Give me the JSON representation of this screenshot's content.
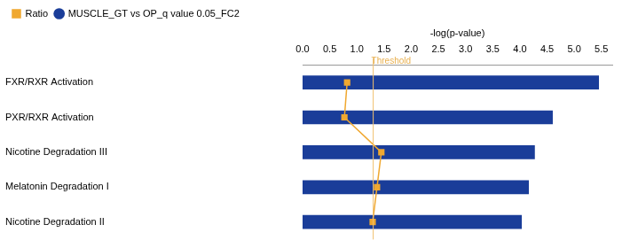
{
  "chart_data": {
    "type": "bar",
    "orientation": "horizontal",
    "xlabel": "-log(p-value)",
    "categories": [
      "FXR/RXR Activation",
      "PXR/RXR Activation",
      "Nicotine Degradation III",
      "Melatonin Degradation I",
      "Nicotine Degradation II"
    ],
    "series": [
      {
        "name": "MUSCLE_GT vs OP_q value 0.05_FC2",
        "type": "bar",
        "color": "#1a3d99",
        "values": [
          5.45,
          4.6,
          4.27,
          4.16,
          4.03
        ]
      },
      {
        "name": "Ratio",
        "type": "line",
        "color": "#f0a830",
        "marker": "square",
        "values": [
          0.82,
          0.77,
          1.45,
          1.37,
          1.29
        ]
      }
    ],
    "xlim": [
      0,
      5.7
    ],
    "xticks": [
      {
        "value": 0,
        "label": "0.0"
      },
      0.5,
      {
        "value": 1,
        "label": "1.0"
      },
      1.5,
      {
        "value": 2,
        "label": "2.0"
      },
      2.5,
      {
        "value": 3,
        "label": "3.0"
      },
      3.5,
      {
        "value": 4,
        "label": "4.0"
      },
      4.5,
      {
        "value": 5,
        "label": "5.0"
      },
      5.5
    ],
    "annotations": [
      {
        "text": "Threshold",
        "x": 1.3
      }
    ],
    "grid": false,
    "legend": "top left"
  }
}
